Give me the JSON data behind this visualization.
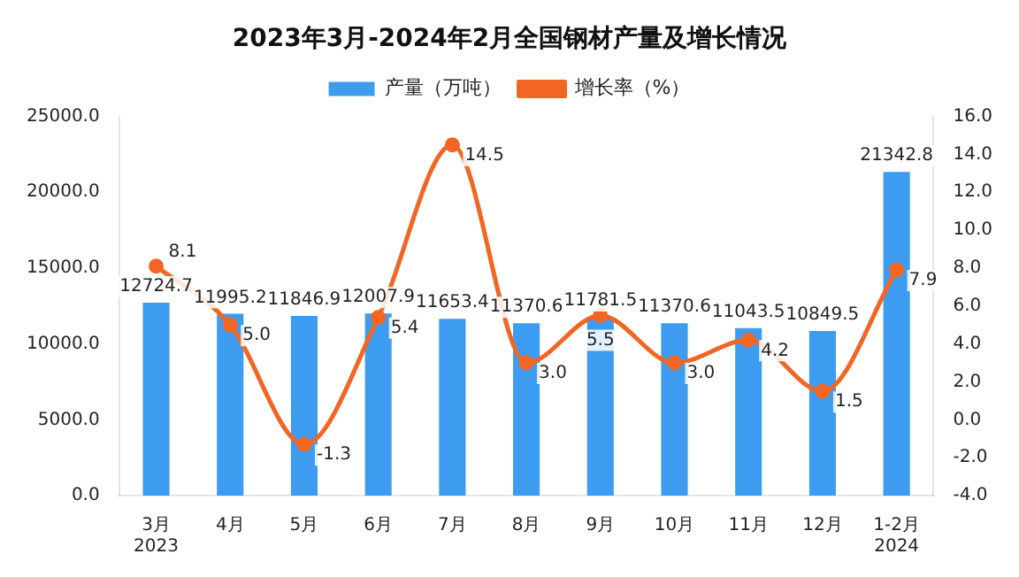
{
  "chart_data": {
    "type": "bar",
    "title": "2023年3月-2024年2月全国钢材产量及增长情况",
    "categories": [
      "3月\n2023",
      "4月",
      "5月",
      "6月",
      "7月",
      "8月",
      "9月",
      "10月",
      "11月",
      "12月",
      "1-2月\n2024"
    ],
    "series": [
      {
        "name": "产量（万吨）",
        "type": "bar",
        "color": "#3d9cf0",
        "values": [
          12724.7,
          11995.2,
          11846.9,
          12007.9,
          11653.4,
          11370.6,
          11781.5,
          11370.6,
          11043.5,
          10849.5,
          21342.8
        ],
        "value_labels": [
          "12724.7",
          "11995.2",
          "11846.9",
          "12007.9",
          "11653.4",
          "11370.6",
          "11781.5",
          "11370.6",
          "11043.5",
          "10849.5",
          "21342.8"
        ]
      },
      {
        "name": "增长率（%）",
        "type": "line",
        "axis": "y2",
        "color": "#f26522",
        "marker": "circle",
        "values": [
          8.1,
          5.0,
          -1.3,
          5.4,
          14.5,
          3.0,
          5.5,
          3.0,
          4.2,
          1.5,
          7.9
        ],
        "value_labels": [
          "8.1",
          "5.0",
          "-1.3",
          "5.4",
          "14.5",
          "3.0",
          "5.5",
          "3.0",
          "4.2",
          "1.5",
          "7.9"
        ]
      }
    ],
    "ylim": [
      0,
      25000
    ],
    "yticks": [
      {
        "value": 0,
        "label": "0.0"
      },
      {
        "value": 5000,
        "label": "5000.0"
      },
      {
        "value": 10000,
        "label": "10000.0"
      },
      {
        "value": 15000,
        "label": "15000.0"
      },
      {
        "value": 20000,
        "label": "20000.0"
      },
      {
        "value": 25000,
        "label": "25000.0"
      }
    ],
    "y2lim": [
      -4,
      16
    ],
    "y2ticks": [
      {
        "value": -4,
        "label": "-4.0"
      },
      {
        "value": -2,
        "label": "-2.0"
      },
      {
        "value": 0,
        "label": "0.0"
      },
      {
        "value": 2,
        "label": "2.0"
      },
      {
        "value": 4,
        "label": "4.0"
      },
      {
        "value": 6,
        "label": "6.0"
      },
      {
        "value": 8,
        "label": "8.0"
      },
      {
        "value": 10,
        "label": "10.0"
      },
      {
        "value": 12,
        "label": "12.0"
      },
      {
        "value": 14,
        "label": "14.0"
      },
      {
        "value": 16,
        "label": "16.0"
      }
    ],
    "grid": false,
    "legend": "top"
  }
}
